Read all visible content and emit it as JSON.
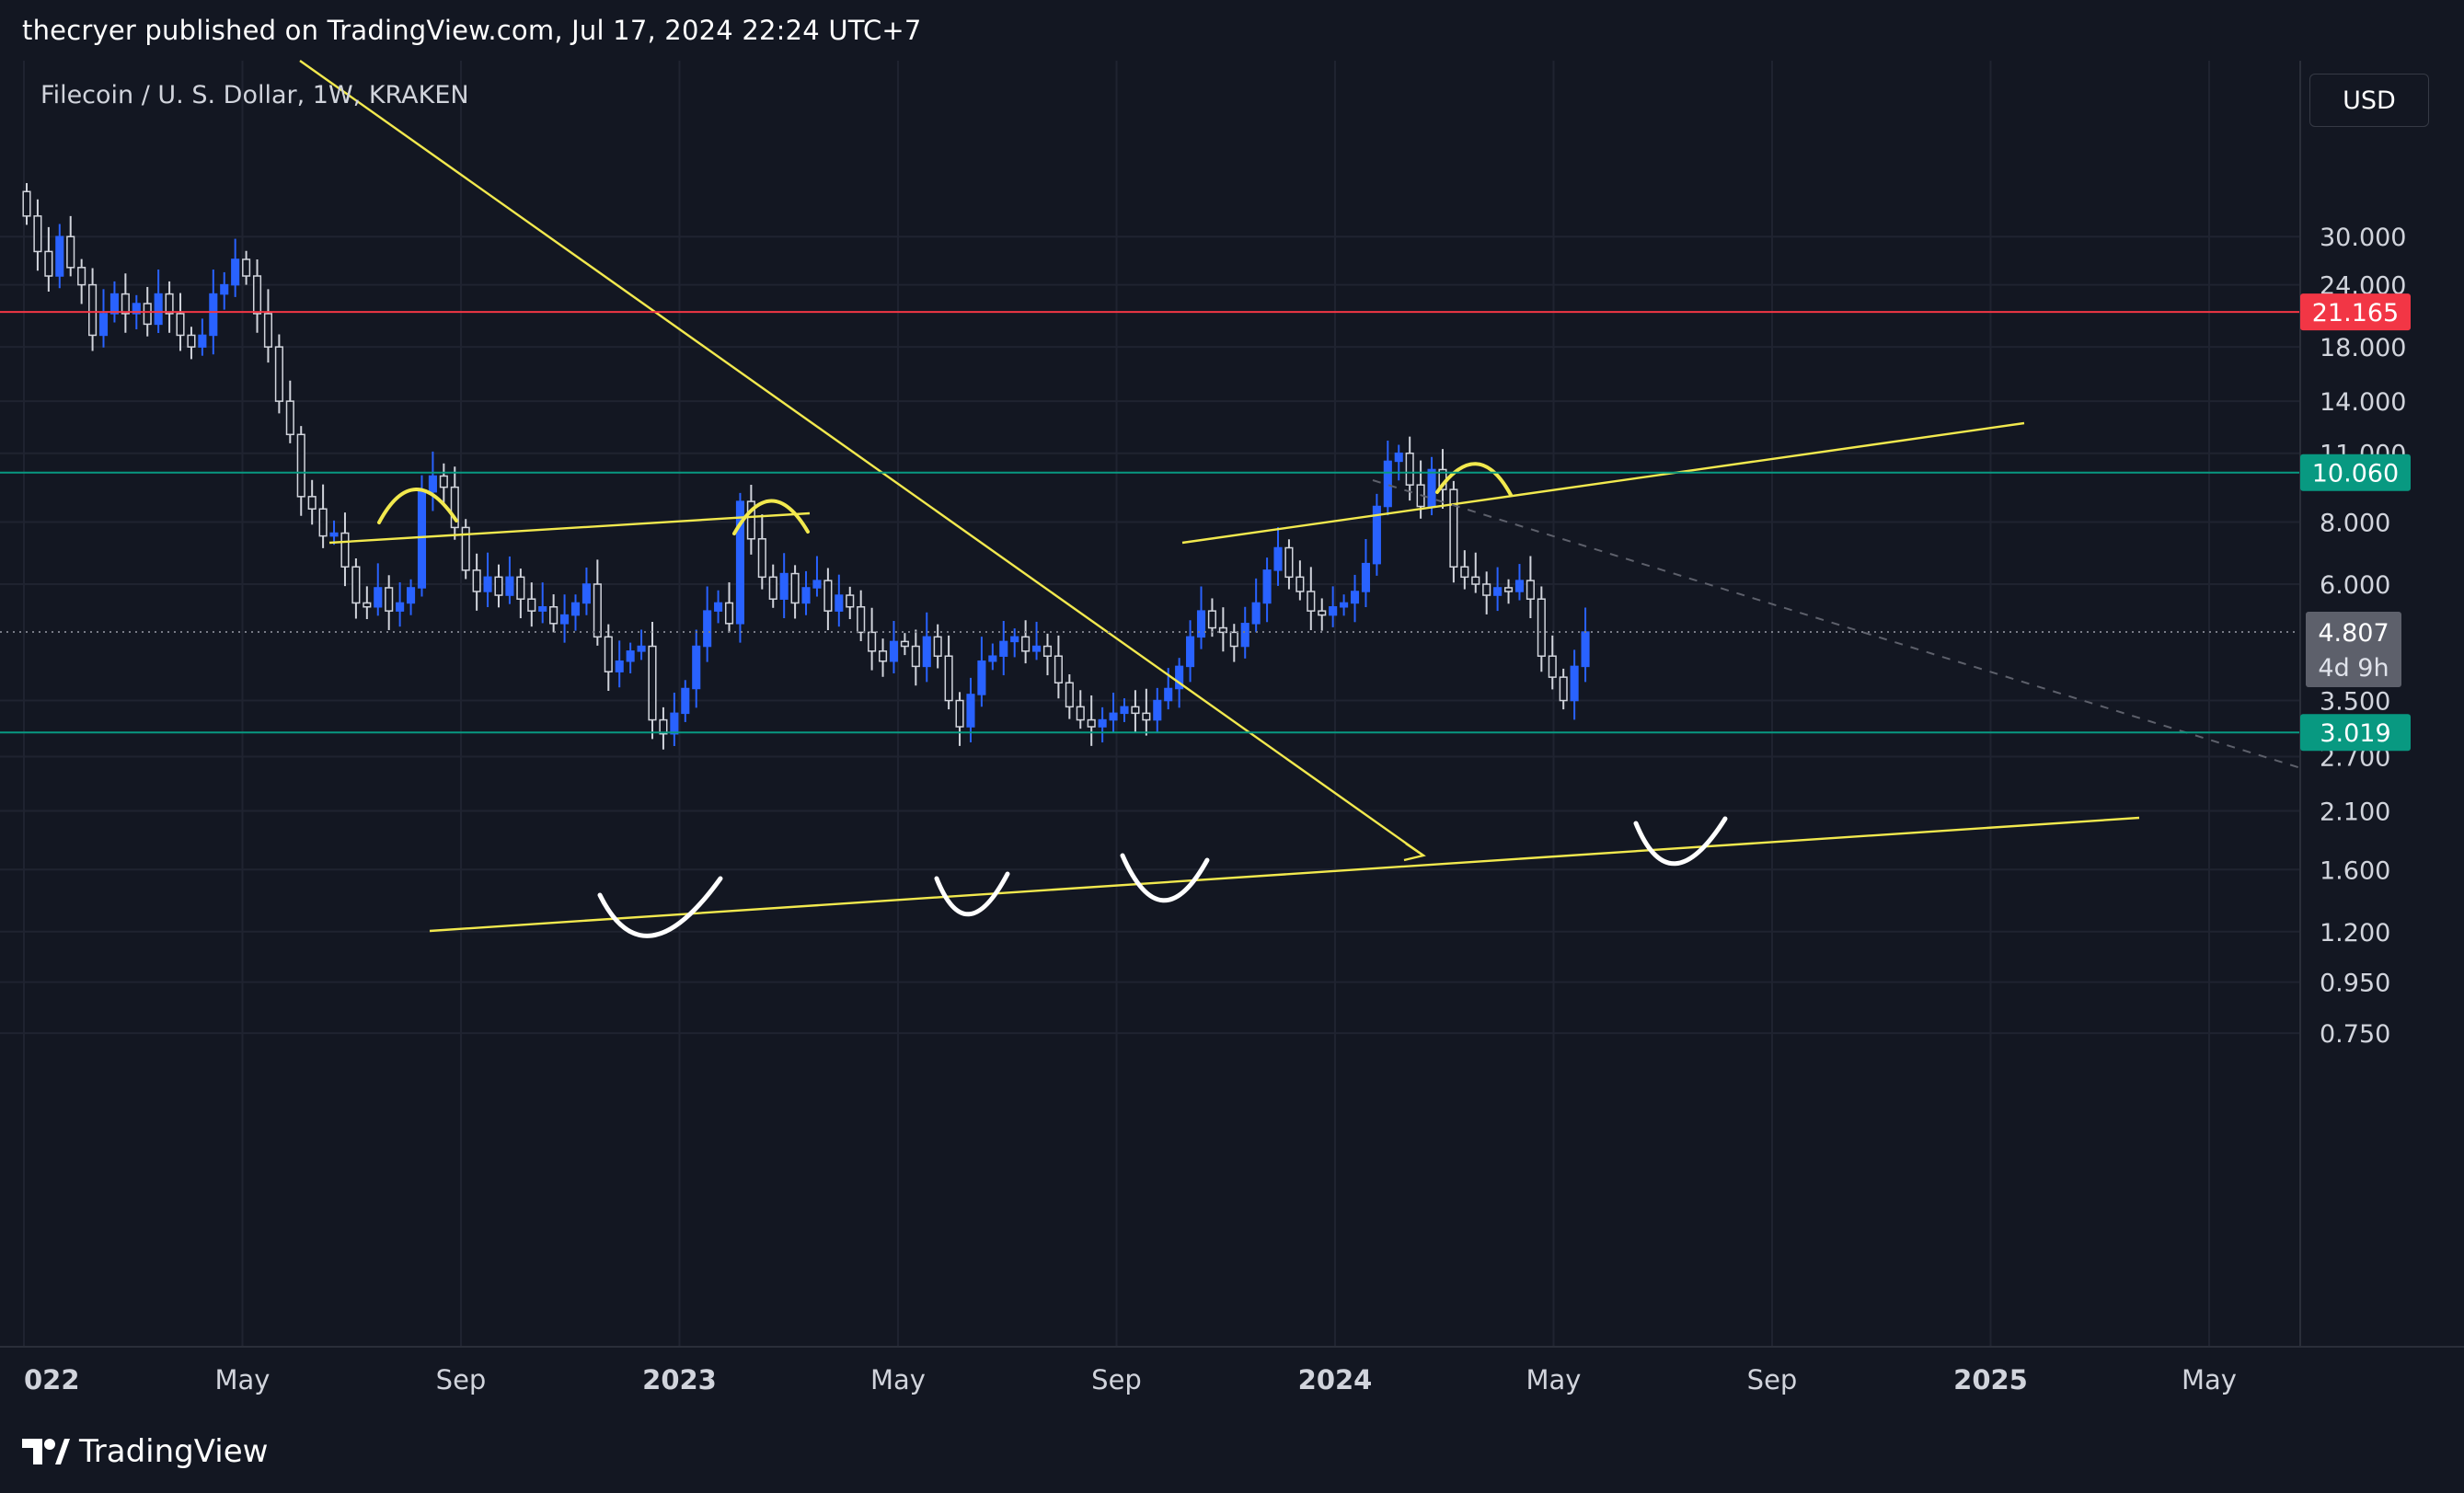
{
  "header": {
    "publisher_line": "thecryer published on TradingView.com, Jul 17, 2024 22:24 UTC+7"
  },
  "footer": {
    "brand": "TradingView"
  },
  "currency_button": "USD",
  "chart_data": {
    "type": "candlestick",
    "title": "Filecoin / U. S. Dollar, 1W, KRAKEN",
    "x_tick_labels": [
      "022",
      "May",
      "Sep",
      "2023",
      "May",
      "Sep",
      "2024",
      "May",
      "Sep",
      "2025",
      "May"
    ],
    "x_tick_values": [
      "2022-01",
      "2022-05",
      "2022-09",
      "2023-01",
      "2023-05",
      "2023-09",
      "2024-01",
      "2024-05",
      "2024-09",
      "2025-01",
      "2025-05"
    ],
    "y_scale": "log",
    "y_range": [
      0.65,
      40
    ],
    "y_tick_labels": [
      "30.000",
      "24.000",
      "18.000",
      "14.000",
      "11.000",
      "8.000",
      "6.000",
      "3.500",
      "2.700",
      "2.100",
      "1.600",
      "1.200",
      "0.950",
      "0.750"
    ],
    "y_tick_values": [
      30,
      24,
      18,
      14,
      11,
      8,
      6,
      3.5,
      2.7,
      2.1,
      1.6,
      1.2,
      0.95,
      0.75
    ],
    "horizontal_lines": [
      {
        "price": 21.165,
        "label": "21.165",
        "color": "#f23645"
      },
      {
        "price": 10.06,
        "label": "10.060",
        "color": "#089981"
      },
      {
        "price": 3.019,
        "label": "3.019",
        "color": "#089981"
      }
    ],
    "last_price": {
      "price": 4.807,
      "label": "4.807",
      "countdown": "4d 9h"
    },
    "colors": {
      "up": "#2962ff",
      "down": "#d1d4dc",
      "trendline": "#f2e94e",
      "annotation": "#ffffff",
      "background": "#131722"
    },
    "candles_weekly_close": [
      33,
      28,
      25,
      30,
      26,
      24,
      19,
      21,
      23,
      21,
      22,
      20,
      23,
      21,
      19,
      18,
      19,
      23,
      24,
      27,
      25,
      21,
      18,
      14,
      12,
      9,
      8.5,
      7.5,
      7.6,
      6.5,
      5.5,
      5.4,
      5.9,
      5.3,
      5.5,
      5.9,
      9.2,
      9.9,
      9.4,
      7.8,
      6.4,
      5.8,
      6.2,
      5.7,
      6.2,
      5.6,
      5.3,
      5.4,
      5.0,
      5.2,
      5.5,
      6.0,
      4.7,
      4.0,
      4.2,
      4.4,
      4.5,
      3.2,
      3.0,
      3.3,
      3.7,
      4.5,
      5.3,
      5.5,
      5.0,
      8.8,
      7.4,
      6.2,
      5.6,
      6.3,
      5.5,
      5.9,
      6.1,
      5.3,
      5.7,
      5.4,
      4.8,
      4.4,
      4.2,
      4.6,
      4.5,
      4.1,
      4.7,
      4.3,
      3.5,
      3.1,
      3.6,
      4.2,
      4.3,
      4.6,
      4.7,
      4.4,
      4.5,
      4.3,
      3.8,
      3.4,
      3.2,
      3.1,
      3.2,
      3.3,
      3.4,
      3.3,
      3.2,
      3.5,
      3.7,
      4.1,
      4.7,
      5.3,
      4.9,
      4.8,
      4.5,
      5.0,
      5.5,
      6.4,
      7.1,
      6.2,
      5.8,
      5.3,
      5.2,
      5.4,
      5.5,
      5.8,
      6.6,
      8.6,
      10.6,
      11.0,
      9.5,
      8.6,
      10.2,
      9.3,
      6.5,
      6.2,
      6.0,
      5.7,
      5.9,
      5.8,
      6.1,
      5.6,
      4.3,
      3.9,
      3.5,
      4.1,
      4.807
    ]
  }
}
